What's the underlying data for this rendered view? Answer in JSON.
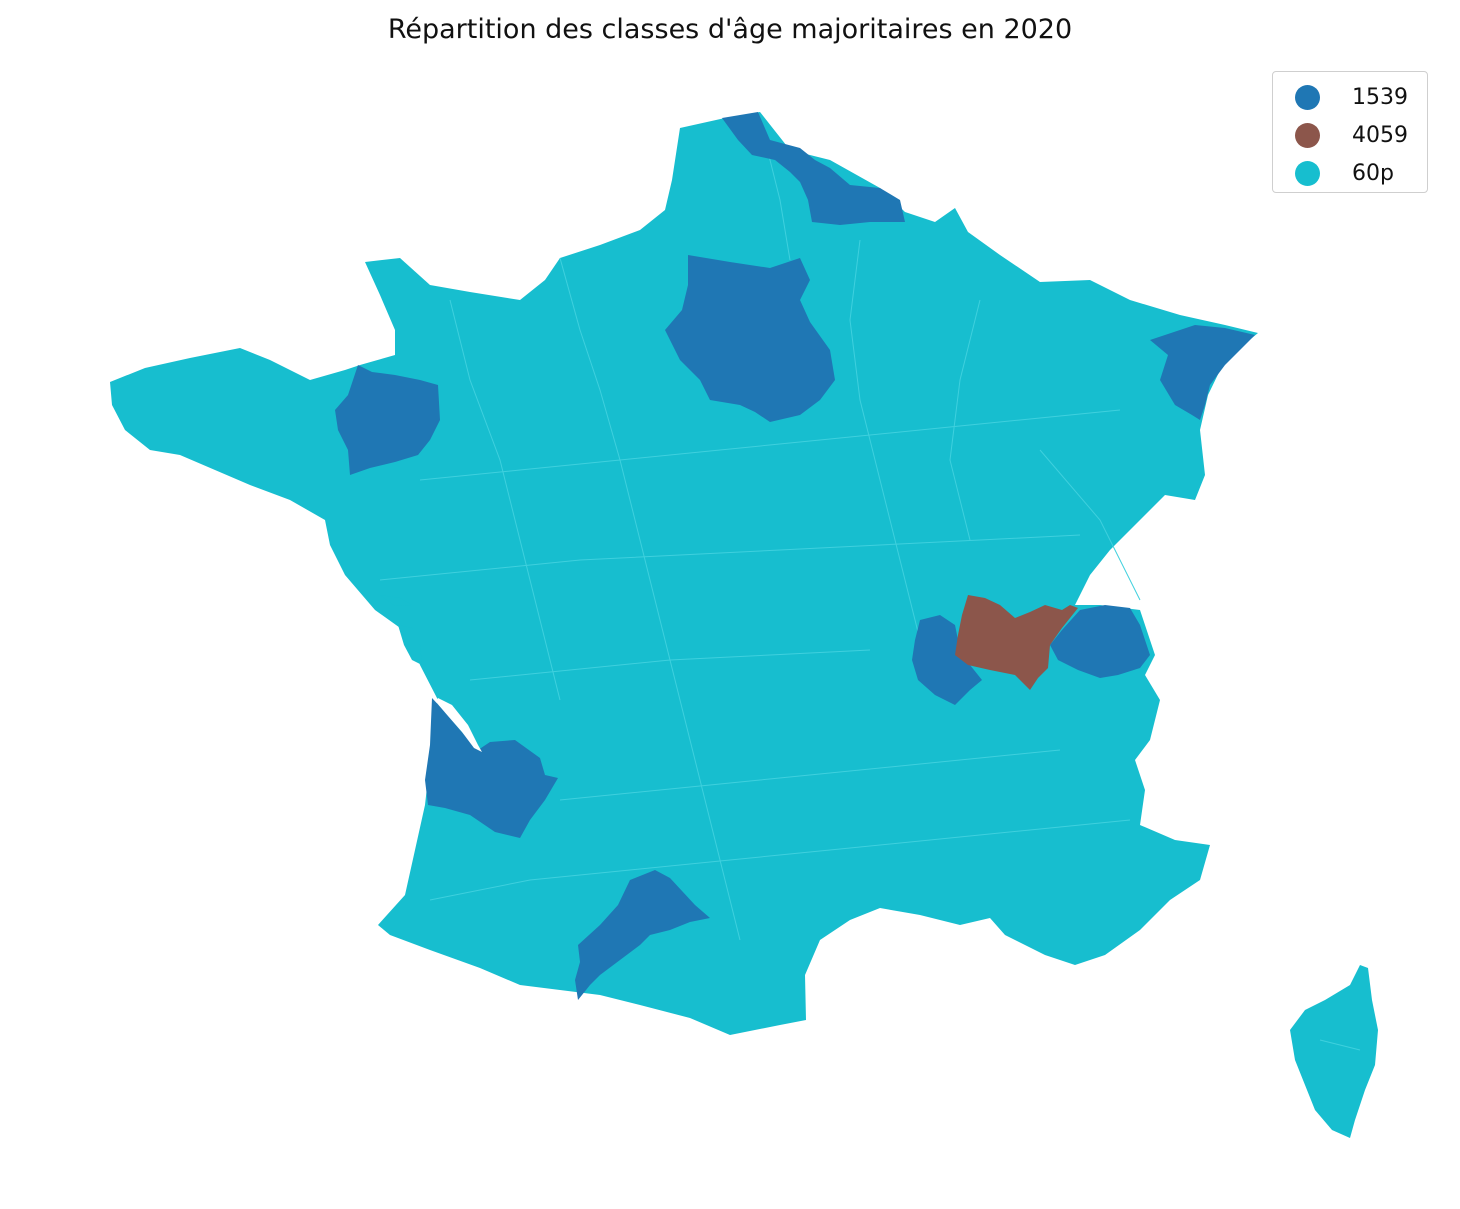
{
  "title": "Répartition des classes d'âge majoritaires en 2020",
  "legend": {
    "items": [
      {
        "label": "1539",
        "color": "#1f77b4"
      },
      {
        "label": "4059",
        "color": "#8c564b"
      },
      {
        "label": "60p",
        "color": "#17becf"
      }
    ]
  },
  "map": {
    "land_color": "#17becf",
    "border_color": "#3fd0de"
  }
}
